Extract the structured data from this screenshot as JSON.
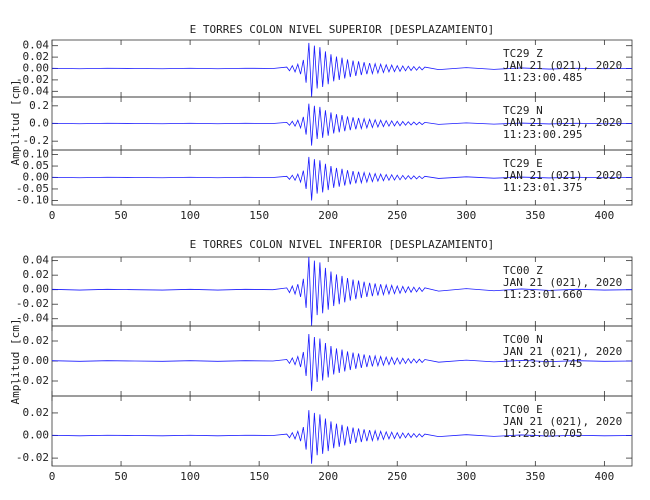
{
  "chart_data": [
    {
      "type": "line",
      "title": "E TORRES COLON NIVEL SUPERIOR [DESPLAZAMIENTO]",
      "ylabel": "Amplitud [cm]",
      "color": "#1a1aff",
      "xlim": [
        0,
        420
      ],
      "xticks": [
        0,
        50,
        100,
        150,
        200,
        250,
        300,
        350,
        400
      ],
      "x": [
        0,
        20,
        40,
        60,
        80,
        100,
        120,
        140,
        160,
        170,
        172,
        174,
        176,
        178,
        180,
        182,
        184,
        186,
        188,
        190,
        192,
        194,
        196,
        198,
        200,
        202,
        204,
        206,
        208,
        210,
        212,
        214,
        216,
        218,
        220,
        222,
        224,
        226,
        228,
        230,
        232,
        234,
        236,
        238,
        240,
        242,
        244,
        246,
        248,
        250,
        252,
        254,
        256,
        258,
        260,
        262,
        264,
        266,
        268,
        270,
        280,
        300,
        320,
        340,
        360,
        380,
        400,
        420
      ],
      "panels": [
        {
          "ylim": [
            -0.05,
            0.05
          ],
          "yticks": [
            -0.04,
            -0.02,
            {
              "value": 0,
              "label": "0.00"
            },
            0.02,
            0.04
          ],
          "labels": [
            "TC29   Z",
            "JAN 21 (021), 2020",
            "11:23:00.485"
          ],
          "values": [
            0.0005,
            -0.0005,
            0.0005,
            0,
            -0.0005,
            0.0005,
            -0.0005,
            0.0005,
            0,
            0.0025,
            -0.004,
            0.005,
            -0.006,
            0.0075,
            -0.01,
            0.015,
            -0.025,
            0.045,
            -0.05,
            0.04,
            -0.035,
            0.0375,
            -0.0325,
            0.03,
            -0.0275,
            0.025,
            -0.0225,
            0.021,
            -0.02,
            0.019,
            -0.0175,
            0.016,
            -0.015,
            0.014,
            -0.013,
            0.0125,
            -0.0115,
            0.011,
            -0.01,
            0.0095,
            -0.009,
            0.0085,
            -0.008,
            0.0075,
            -0.007,
            0.0065,
            -0.006,
            0.006,
            -0.0055,
            0.005,
            -0.005,
            0.0045,
            -0.004,
            0.004,
            -0.0035,
            0.0035,
            -0.003,
            0.003,
            -0.0025,
            0.0025,
            -0.002,
            0.0015,
            -0.0015,
            0.001,
            -0.001,
            0.0005,
            -0.0005,
            0
          ]
        },
        {
          "ylim": [
            -0.3,
            0.3
          ],
          "yticks": [
            -0.2,
            {
              "value": 0,
              "label": "0.0"
            },
            0.2
          ],
          "labels": [
            "TC29   N",
            "JAN 21 (021), 2020",
            "11:23:00.295"
          ],
          "values": [
            0.0025,
            -0.0025,
            0.0025,
            0,
            -0.0025,
            0.0025,
            -0.0025,
            0.0025,
            0,
            0.0125,
            -0.02,
            0.025,
            -0.03,
            0.0375,
            -0.05,
            0.075,
            -0.125,
            0.225,
            -0.25,
            0.2,
            -0.175,
            0.1875,
            -0.1625,
            0.15,
            -0.1375,
            0.125,
            -0.1125,
            0.105,
            -0.1,
            0.095,
            -0.0875,
            0.08,
            -0.075,
            0.07,
            -0.065,
            0.0625,
            -0.0575,
            0.055,
            -0.05,
            0.0475,
            -0.045,
            0.0425,
            -0.04,
            0.0375,
            -0.035,
            0.0325,
            -0.03,
            0.03,
            -0.0275,
            0.025,
            -0.025,
            0.0225,
            -0.02,
            0.02,
            -0.0175,
            0.0175,
            -0.015,
            0.015,
            -0.0125,
            0.0125,
            -0.01,
            0.0075,
            -0.0075,
            0.005,
            -0.005,
            0.0025,
            -0.0025,
            0
          ]
        },
        {
          "ylim": [
            -0.12,
            0.12
          ],
          "yticks": [
            {
              "value": -0.1,
              "label": "-0.10"
            },
            -0.05,
            {
              "value": 0,
              "label": "0.00"
            },
            0.05,
            {
              "value": 0.1,
              "label": "0.10"
            }
          ],
          "labels": [
            "TC29   E",
            "JAN 21 (021), 2020",
            "11:23:01.375"
          ],
          "values": [
            0.001,
            -0.001,
            0.001,
            0,
            -0.001,
            0.001,
            -0.001,
            0.001,
            0,
            0.005,
            -0.008,
            0.01,
            -0.012,
            0.015,
            -0.02,
            0.03,
            -0.05,
            0.09,
            -0.1,
            0.08,
            -0.07,
            0.075,
            -0.065,
            0.06,
            -0.055,
            0.05,
            -0.045,
            0.042,
            -0.04,
            0.038,
            -0.035,
            0.032,
            -0.03,
            0.028,
            -0.026,
            0.025,
            -0.023,
            0.022,
            -0.02,
            0.019,
            -0.018,
            0.017,
            -0.016,
            0.015,
            -0.014,
            0.013,
            -0.012,
            0.012,
            -0.011,
            0.01,
            -0.01,
            0.009,
            -0.008,
            0.008,
            -0.007,
            0.007,
            -0.006,
            0.006,
            -0.005,
            0.005,
            -0.004,
            0.003,
            -0.003,
            0.002,
            -0.002,
            0.001,
            -0.001,
            0
          ]
        }
      ]
    },
    {
      "type": "line",
      "title": "E TORRES COLON NIVEL INFERIOR [DESPLAZAMIENTO]",
      "ylabel": "Amplitud [cm]",
      "color": "#1a1aff",
      "xlim": [
        0,
        420
      ],
      "xticks": [
        0,
        50,
        100,
        150,
        200,
        250,
        300,
        350,
        400
      ],
      "x": [
        0,
        20,
        40,
        60,
        80,
        100,
        120,
        140,
        160,
        170,
        172,
        174,
        176,
        178,
        180,
        182,
        184,
        186,
        188,
        190,
        192,
        194,
        196,
        198,
        200,
        202,
        204,
        206,
        208,
        210,
        212,
        214,
        216,
        218,
        220,
        222,
        224,
        226,
        228,
        230,
        232,
        234,
        236,
        238,
        240,
        242,
        244,
        246,
        248,
        250,
        252,
        254,
        256,
        258,
        260,
        262,
        264,
        266,
        268,
        270,
        280,
        300,
        320,
        340,
        360,
        380,
        400,
        420
      ],
      "panels": [
        {
          "ylim": [
            -0.05,
            0.045
          ],
          "yticks": [
            -0.04,
            -0.02,
            {
              "value": 0,
              "label": "0.00"
            },
            0.02,
            0.04
          ],
          "labels": [
            "TC00   Z",
            "JAN 21 (021), 2020",
            "11:23:01.660"
          ],
          "values": [
            0.0005,
            -0.0005,
            0.0005,
            0,
            -0.0005,
            0.0005,
            -0.0005,
            0.0005,
            0,
            0.0025,
            -0.004,
            0.005,
            -0.006,
            0.0075,
            -0.01,
            0.015,
            -0.025,
            0.045,
            -0.05,
            0.04,
            -0.035,
            0.0375,
            -0.0325,
            0.03,
            -0.0275,
            0.025,
            -0.0225,
            0.021,
            -0.02,
            0.019,
            -0.0175,
            0.016,
            -0.015,
            0.014,
            -0.013,
            0.0125,
            -0.0115,
            0.011,
            -0.01,
            0.0095,
            -0.009,
            0.0085,
            -0.008,
            0.0075,
            -0.007,
            0.0065,
            -0.006,
            0.006,
            -0.0055,
            0.005,
            -0.005,
            0.0045,
            -0.004,
            0.004,
            -0.0035,
            0.0035,
            -0.003,
            0.003,
            -0.0025,
            0.0025,
            -0.002,
            0.0015,
            -0.0015,
            0.001,
            -0.001,
            0.0005,
            -0.0005,
            0
          ]
        },
        {
          "ylim": [
            -0.035,
            0.035
          ],
          "yticks": [
            -0.02,
            {
              "value": 0,
              "label": "0.00"
            },
            0.02
          ],
          "labels": [
            "TC00   N",
            "JAN 21 (021), 2020",
            "11:23:01.745"
          ],
          "values": [
            0.0003,
            -0.0003,
            0.0003,
            0,
            -0.0003,
            0.0003,
            -0.0003,
            0.0003,
            0,
            0.0015,
            -0.0024,
            0.003,
            -0.0036,
            0.0045,
            -0.006,
            0.009,
            -0.015,
            0.027,
            -0.03,
            0.024,
            -0.021,
            0.0225,
            -0.0195,
            0.018,
            -0.0165,
            0.015,
            -0.0135,
            0.0126,
            -0.012,
            0.0114,
            -0.0105,
            0.0096,
            -0.009,
            0.0084,
            -0.0078,
            0.0075,
            -0.0069,
            0.0066,
            -0.006,
            0.0057,
            -0.0054,
            0.0051,
            -0.0048,
            0.0045,
            -0.0042,
            0.0039,
            -0.0036,
            0.0036,
            -0.0033,
            0.003,
            -0.003,
            0.0027,
            -0.0024,
            0.0024,
            -0.0021,
            0.0021,
            -0.0018,
            0.0018,
            -0.0015,
            0.0015,
            -0.0012,
            0.0009,
            -0.0009,
            0.0006,
            -0.0006,
            0.0003,
            -0.0003,
            0
          ]
        },
        {
          "ylim": [
            -0.027,
            0.035
          ],
          "yticks": [
            -0.02,
            {
              "value": 0,
              "label": "0.00"
            },
            0.02
          ],
          "labels": [
            "TC00   E",
            "JAN 21 (021), 2020",
            "11:23:00.705"
          ],
          "values": [
            0.00025,
            -0.00025,
            0.00025,
            0,
            -0.00025,
            0.00025,
            -0.00025,
            0.00025,
            0,
            0.00125,
            -0.002,
            0.0025,
            -0.003,
            0.00375,
            -0.005,
            0.0075,
            -0.0125,
            0.0225,
            -0.025,
            0.02,
            -0.0175,
            0.01875,
            -0.01625,
            0.015,
            -0.01375,
            0.0125,
            -0.01125,
            0.0105,
            -0.01,
            0.0095,
            -0.00875,
            0.008,
            -0.0075,
            0.007,
            -0.0065,
            0.00625,
            -0.00575,
            0.0055,
            -0.005,
            0.00475,
            -0.0045,
            0.00425,
            -0.004,
            0.00375,
            -0.0035,
            0.00325,
            -0.003,
            0.003,
            -0.00275,
            0.0025,
            -0.0025,
            0.00225,
            -0.002,
            0.002,
            -0.00175,
            0.00175,
            -0.0015,
            0.0015,
            -0.00125,
            0.00125,
            -0.001,
            0.00075,
            -0.00075,
            0.0005,
            -0.0005,
            0.00025,
            -0.00025,
            0
          ]
        }
      ]
    }
  ]
}
